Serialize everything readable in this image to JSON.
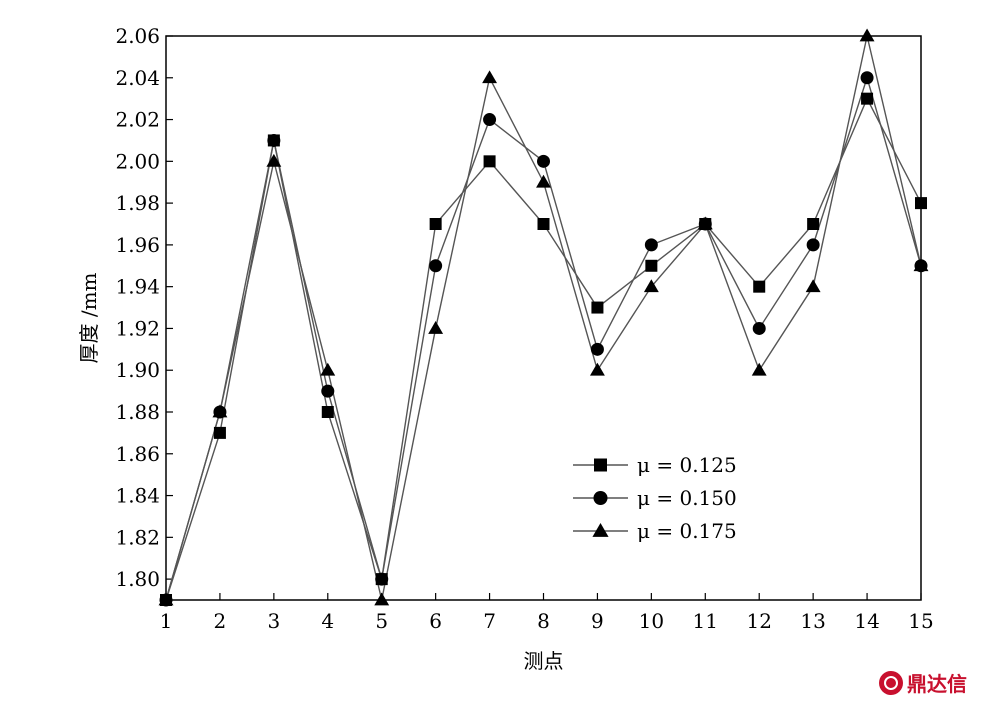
{
  "chart_data": {
    "type": "line",
    "xlabel": "测点",
    "ylabel": "厚度 /mm",
    "x": [
      1,
      2,
      3,
      4,
      5,
      6,
      7,
      8,
      9,
      10,
      11,
      12,
      13,
      14,
      15
    ],
    "xlim": [
      1,
      15
    ],
    "ylim": [
      1.79,
      2.06
    ],
    "yticks": [
      "1.80",
      "1.82",
      "1.84",
      "1.86",
      "1.88",
      "1.90",
      "1.92",
      "1.94",
      "1.96",
      "1.98",
      "2.00",
      "2.02",
      "2.04",
      "2.06"
    ],
    "grid": false,
    "legend_position": "lower-center-right",
    "series": [
      {
        "name": "μ = 0.125",
        "marker": "square",
        "values": [
          1.79,
          1.87,
          2.01,
          1.88,
          1.8,
          1.97,
          2.0,
          1.97,
          1.93,
          1.95,
          1.97,
          1.94,
          1.97,
          2.03,
          1.98
        ]
      },
      {
        "name": "μ = 0.150",
        "marker": "circle",
        "values": [
          1.79,
          1.88,
          2.01,
          1.89,
          1.8,
          1.95,
          2.02,
          2.0,
          1.91,
          1.96,
          1.97,
          1.92,
          1.96,
          2.04,
          1.95
        ]
      },
      {
        "name": "μ = 0.175",
        "marker": "triangle",
        "values": [
          1.79,
          1.88,
          2.0,
          1.9,
          1.79,
          1.92,
          2.04,
          1.99,
          1.9,
          1.94,
          1.97,
          1.9,
          1.94,
          2.06,
          1.95
        ]
      }
    ],
    "line_color": "#555555",
    "marker_color": "#000000"
  },
  "watermark": {
    "text": "鼎达信",
    "icon": "logo-icon"
  }
}
